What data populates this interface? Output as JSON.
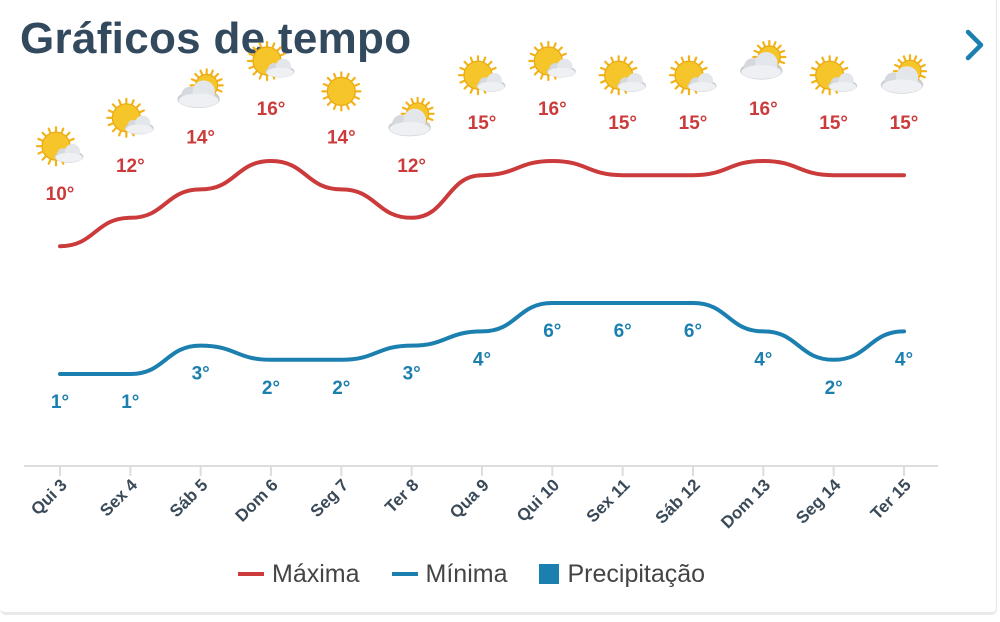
{
  "header": {
    "title": "Gráficos de tempo",
    "next_icon": "chevron-right-icon"
  },
  "colors": {
    "max": "#cc3b3b",
    "min": "#1b7fb0",
    "precip": "#1b7fb0",
    "axis": "#dddddd",
    "title": "#334a5e"
  },
  "legend": {
    "max_label": "Máxima",
    "min_label": "Mínima",
    "precip_label": "Precipitação"
  },
  "chart_data": {
    "type": "line",
    "title": "Gráficos de tempo",
    "categories": [
      "Qui 3",
      "Sex 4",
      "Sáb 5",
      "Dom 6",
      "Seg 7",
      "Ter 8",
      "Qua 9",
      "Qui 10",
      "Sex 11",
      "Sáb 12",
      "Dom 13",
      "Seg 14",
      "Ter 15"
    ],
    "series": [
      {
        "name": "Máxima",
        "values": [
          10,
          12,
          14,
          16,
          14,
          12,
          15,
          16,
          15,
          15,
          16,
          15,
          15
        ],
        "labels": [
          "10°",
          "12°",
          "14°",
          "16°",
          "14°",
          "12°",
          "15°",
          "16°",
          "15°",
          "15°",
          "16°",
          "15°",
          "15°"
        ]
      },
      {
        "name": "Mínima",
        "values": [
          1,
          1,
          3,
          2,
          2,
          3,
          4,
          6,
          6,
          6,
          4,
          2,
          4
        ],
        "labels": [
          "1°",
          "1°",
          "3°",
          "2°",
          "2°",
          "3°",
          "4°",
          "6°",
          "6°",
          "6°",
          "4°",
          "2°",
          "4°"
        ]
      }
    ],
    "weather_icons": [
      "partly-cloudy-icon",
      "partly-cloudy-icon",
      "mostly-cloudy-icon",
      "partly-cloudy-icon",
      "sunny-icon",
      "mostly-cloudy-icon",
      "partly-cloudy-icon",
      "partly-cloudy-icon",
      "partly-cloudy-icon",
      "partly-cloudy-icon",
      "mostly-cloudy-icon",
      "partly-cloudy-icon",
      "mostly-cloudy-icon"
    ],
    "xlabel": "",
    "ylabel": "",
    "legend_position": "bottom"
  }
}
